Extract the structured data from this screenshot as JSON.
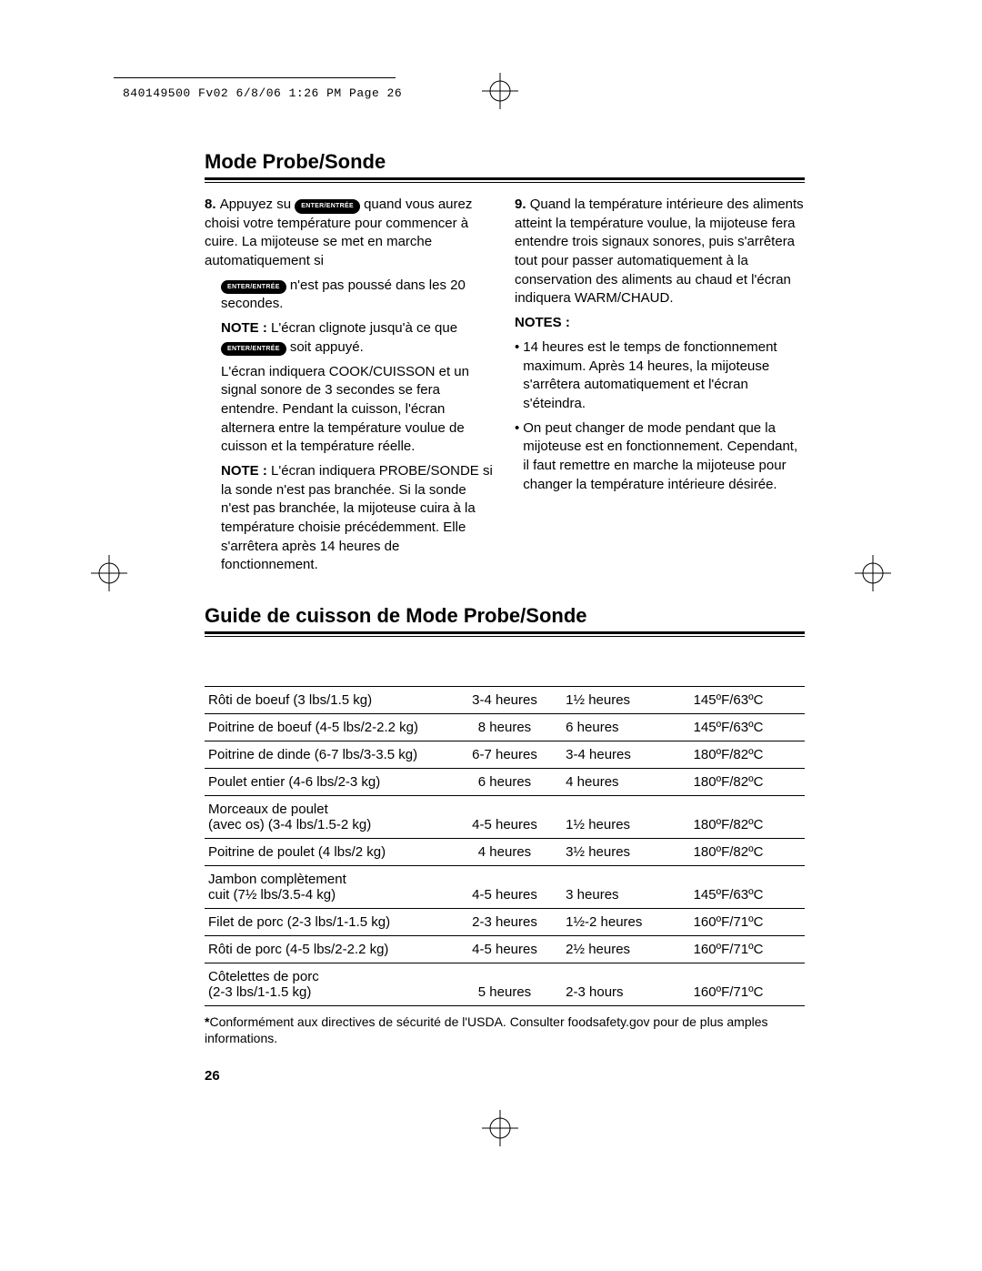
{
  "header_info": "840149500 Fv02  6/8/06  1:26 PM  Page 26",
  "heading1": "Mode Probe/Sonde",
  "enter_label": "ENTER/ENTRÉE",
  "left": {
    "s8a": "Appuyez su",
    "s8b": "quand vous aurez choisi votre température pour commencer à cuire. La mijoteuse se met en marche automatiquement si",
    "s8c": "n'est pas poussé dans les 20 secondes.",
    "note1a": "L'écran clignote jusqu'à ce que",
    "note1b": "soit appuyé.",
    "s8d": "L'écran indiquera COOK/CUISSON et un signal sonore de 3 secondes se fera entendre. Pendant la cuisson, l'écran alternera entre la température voulue de cuisson et la température réelle.",
    "note2": "L'écran indiquera PROBE/SONDE si la sonde n'est pas branchée. Si la sonde n'est pas branchée, la mijoteuse cuira à la température choisie précédemment. Elle s'arrêtera après 14 heures de fonctionnement."
  },
  "right": {
    "s9": "Quand la température intérieure des aliments atteint la température voulue, la mijoteuse fera entendre trois signaux sonores, puis s'arrêtera tout pour passer automatiquement à la conservation des aliments au chaud et l'écran indiquera WARM/CHAUD.",
    "notes_head": "NOTES :",
    "b1": "14 heures est le temps de fonctionnement maximum. Après 14 heures, la mijoteuse s'arrêtera automatiquement et l'écran s'éteindra.",
    "b2": "On peut changer de mode pendant que la mijoteuse est en fonctionnement. Cependant, il faut remettre en marche la mijoteuse pour changer la température intérieure désirée."
  },
  "heading2": "Guide de cuisson de Mode Probe/Sonde",
  "table": {
    "rows": [
      [
        "Rôti de boeuf (3 lbs/1.5 kg)",
        "3-4 heures",
        "1½ heures",
        "145ºF/63ºC"
      ],
      [
        "Poitrine de boeuf (4-5 lbs/2-2.2 kg)",
        "8 heures",
        "6 heures",
        "145ºF/63ºC"
      ],
      [
        "Poitrine de dinde (6-7 lbs/3-3.5 kg)",
        "6-7 heures",
        "3-4 heures",
        "180ºF/82ºC"
      ],
      [
        "Poulet entier (4-6 lbs/2-3 kg)",
        "6 heures",
        "4 heures",
        "180ºF/82ºC"
      ],
      [
        "Morceaux de poulet\n(avec os) (3-4 lbs/1.5-2 kg)",
        "4-5 heures",
        "1½ heures",
        "180ºF/82ºC"
      ],
      [
        "Poitrine de poulet (4 lbs/2 kg)",
        "4 heures",
        "3½ heures",
        "180ºF/82ºC"
      ],
      [
        "Jambon complètement\ncuit (7½ lbs/3.5-4 kg)",
        "4-5 heures",
        "3 heures",
        "145ºF/63ºC"
      ],
      [
        "Filet de porc (2-3 lbs/1-1.5 kg)",
        "2-3 heures",
        "1½-2 heures",
        "160ºF/71ºC"
      ],
      [
        "Rôti de porc (4-5 lbs/2-2.2 kg)",
        "4-5 heures",
        "2½ heures",
        "160ºF/71ºC"
      ],
      [
        "Côtelettes de porc\n(2-3 lbs/1-1.5 kg)",
        "5 heures",
        "2-3 hours",
        "160ºF/71ºC"
      ]
    ]
  },
  "footnote_star": "*",
  "footnote": "Conformément aux directives de sécurité de l'USDA. Consulter foodsafety.gov pour de plus amples informations.",
  "page_num": "26",
  "note_label": "NOTE :"
}
